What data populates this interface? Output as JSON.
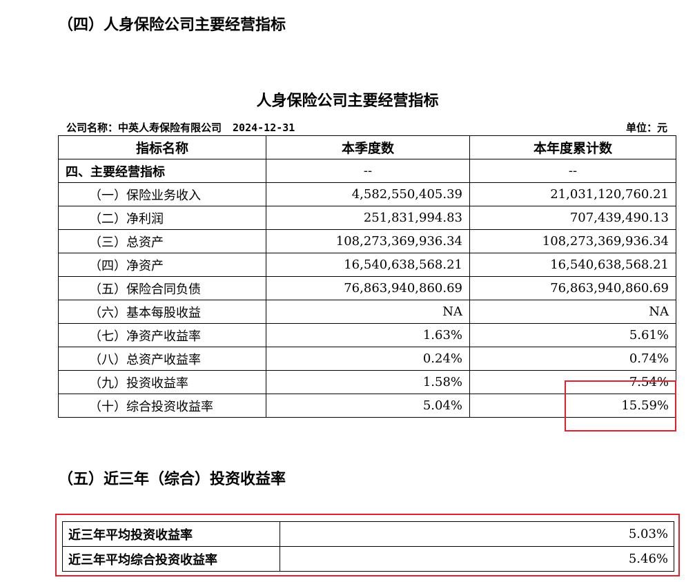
{
  "section4": {
    "heading": "（四）人身保险公司主要经营指标"
  },
  "table": {
    "title": "人身保险公司主要经营指标",
    "company_label": "公司名称：中英人寿保险有限公司",
    "date": "2024-12-31",
    "unit": "单位：元",
    "headers": [
      "指标名称",
      "本季度数",
      "本年度累计数"
    ],
    "rows": [
      {
        "name": "四、主要经营指标",
        "quarter": "--",
        "ytd": "--"
      },
      {
        "name": "（一）保险业务收入",
        "quarter": "4,582,550,405.39",
        "ytd": "21,031,120,760.21"
      },
      {
        "name": "（二）净利润",
        "quarter": "251,831,994.83",
        "ytd": "707,439,490.13"
      },
      {
        "name": "（三）总资产",
        "quarter": "108,273,369,936.34",
        "ytd": "108,273,369,936.34"
      },
      {
        "name": "（四）净资产",
        "quarter": "16,540,638,568.21",
        "ytd": "16,540,638,568.21"
      },
      {
        "name": "（五）保险合同负债",
        "quarter": "76,863,940,860.69",
        "ytd": "76,863,940,860.69"
      },
      {
        "name": "（六）基本每股收益",
        "quarter": "NA",
        "ytd": "NA"
      },
      {
        "name": "（七）净资产收益率",
        "quarter": "1.63%",
        "ytd": "5.61%"
      },
      {
        "name": "（八）总资产收益率",
        "quarter": "0.24%",
        "ytd": "0.74%"
      },
      {
        "name": "（九）投资收益率",
        "quarter": "1.58%",
        "ytd": "7.54%"
      },
      {
        "name": "（十）综合投资收益率",
        "quarter": "5.04%",
        "ytd": "15.59%"
      }
    ]
  },
  "section5": {
    "heading": "（五）近三年（综合）投资收益率",
    "rows": [
      {
        "label": "近三年平均投资收益率",
        "value": "5.03%"
      },
      {
        "label": "近三年平均综合投资收益率",
        "value": "5.46%"
      }
    ]
  },
  "colors": {
    "highlight": "#e0202e",
    "text": "#000000",
    "background": "#ffffff"
  }
}
